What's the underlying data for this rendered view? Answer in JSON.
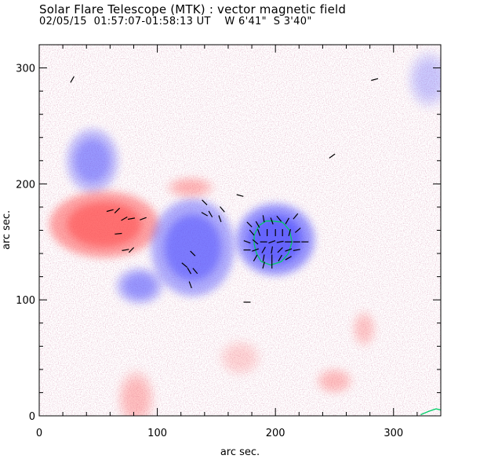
{
  "chart_data": {
    "type": "heatmap",
    "title": "Solar Flare Telescope (MTK) : vector magnetic field",
    "subtitle": "02/05/15  01:57:07-01:58:13 UT    W 6'41\"  S 3'40\"",
    "xlabel": "arc sec.",
    "ylabel": "arc sec.",
    "xlim": [
      0,
      340
    ],
    "ylim": [
      0,
      320
    ],
    "x_major_ticks": [
      0,
      100,
      200,
      300
    ],
    "y_major_ticks": [
      0,
      100,
      200,
      300
    ],
    "x_minor_step": 20,
    "y_minor_step": 20,
    "grid": false,
    "colors": {
      "positive_polarity": "#ff4040",
      "negative_polarity": "#4040ff",
      "vector": "#000000",
      "contour": "#00cc66",
      "background": "#ffffff"
    },
    "regions": [
      {
        "polarity": "negative",
        "x": 45,
        "y": 220,
        "rx": 20,
        "ry": 25,
        "strength": 0.55
      },
      {
        "polarity": "positive",
        "x": 55,
        "y": 165,
        "rx": 42,
        "ry": 26,
        "strength": 0.85
      },
      {
        "polarity": "negative",
        "x": 130,
        "y": 145,
        "rx": 32,
        "ry": 38,
        "strength": 0.75
      },
      {
        "polarity": "negative",
        "x": 200,
        "y": 152,
        "rx": 30,
        "ry": 28,
        "strength": 0.95
      },
      {
        "polarity": "negative",
        "x": 85,
        "y": 112,
        "rx": 18,
        "ry": 14,
        "strength": 0.55
      },
      {
        "polarity": "positive",
        "x": 128,
        "y": 197,
        "rx": 18,
        "ry": 8,
        "strength": 0.35
      },
      {
        "polarity": "positive",
        "x": 82,
        "y": 15,
        "rx": 14,
        "ry": 22,
        "strength": 0.3
      },
      {
        "polarity": "positive",
        "x": 250,
        "y": 30,
        "rx": 14,
        "ry": 10,
        "strength": 0.3
      },
      {
        "polarity": "positive",
        "x": 275,
        "y": 75,
        "rx": 9,
        "ry": 14,
        "strength": 0.25
      },
      {
        "polarity": "positive",
        "x": 170,
        "y": 50,
        "rx": 16,
        "ry": 14,
        "strength": 0.18
      },
      {
        "polarity": "negative",
        "x": 330,
        "y": 290,
        "rx": 16,
        "ry": 22,
        "strength": 0.25
      }
    ],
    "vectors": [
      {
        "x": 28,
        "y": 290,
        "angle": 60
      },
      {
        "x": 284,
        "y": 290,
        "angle": 15
      },
      {
        "x": 248,
        "y": 224,
        "angle": 35
      },
      {
        "x": 170,
        "y": 190,
        "angle": -15
      },
      {
        "x": 60,
        "y": 177,
        "angle": 15
      },
      {
        "x": 66,
        "y": 177,
        "angle": 45
      },
      {
        "x": 72,
        "y": 170,
        "angle": 30
      },
      {
        "x": 78,
        "y": 170,
        "angle": 10
      },
      {
        "x": 88,
        "y": 170,
        "angle": 20
      },
      {
        "x": 67,
        "y": 157,
        "angle": 5
      },
      {
        "x": 73,
        "y": 143,
        "angle": 10
      },
      {
        "x": 78,
        "y": 143,
        "angle": 45
      },
      {
        "x": 140,
        "y": 184,
        "angle": -45
      },
      {
        "x": 140,
        "y": 174,
        "angle": -30
      },
      {
        "x": 145,
        "y": 174,
        "angle": -60
      },
      {
        "x": 153,
        "y": 170,
        "angle": -70
      },
      {
        "x": 155,
        "y": 178,
        "angle": -50
      },
      {
        "x": 130,
        "y": 140,
        "angle": -45
      },
      {
        "x": 123,
        "y": 130,
        "angle": -40
      },
      {
        "x": 127,
        "y": 125,
        "angle": -60
      },
      {
        "x": 132,
        "y": 125,
        "angle": -50
      },
      {
        "x": 128,
        "y": 113,
        "angle": -70
      },
      {
        "x": 176,
        "y": 98,
        "angle": 0
      },
      {
        "x": 178,
        "y": 165,
        "angle": -45
      },
      {
        "x": 185,
        "y": 165,
        "angle": -60
      },
      {
        "x": 190,
        "y": 170,
        "angle": -80
      },
      {
        "x": 197,
        "y": 168,
        "angle": -70
      },
      {
        "x": 203,
        "y": 170,
        "angle": -50
      },
      {
        "x": 210,
        "y": 168,
        "angle": 60
      },
      {
        "x": 217,
        "y": 172,
        "angle": 50
      },
      {
        "x": 180,
        "y": 158,
        "angle": -50
      },
      {
        "x": 186,
        "y": 158,
        "angle": -70
      },
      {
        "x": 193,
        "y": 158,
        "angle": -90
      },
      {
        "x": 200,
        "y": 158,
        "angle": -90
      },
      {
        "x": 206,
        "y": 158,
        "angle": -90
      },
      {
        "x": 212,
        "y": 158,
        "angle": 75
      },
      {
        "x": 219,
        "y": 160,
        "angle": 40
      },
      {
        "x": 176,
        "y": 150,
        "angle": -20
      },
      {
        "x": 183,
        "y": 150,
        "angle": -40
      },
      {
        "x": 190,
        "y": 150,
        "angle": 0
      },
      {
        "x": 197,
        "y": 150,
        "angle": 20
      },
      {
        "x": 204,
        "y": 150,
        "angle": 10
      },
      {
        "x": 211,
        "y": 150,
        "angle": 0
      },
      {
        "x": 218,
        "y": 150,
        "angle": 0
      },
      {
        "x": 225,
        "y": 150,
        "angle": 0
      },
      {
        "x": 176,
        "y": 143,
        "angle": 0
      },
      {
        "x": 183,
        "y": 143,
        "angle": 20
      },
      {
        "x": 190,
        "y": 143,
        "angle": 60
      },
      {
        "x": 197,
        "y": 143,
        "angle": 80
      },
      {
        "x": 204,
        "y": 143,
        "angle": 45
      },
      {
        "x": 211,
        "y": 143,
        "angle": 20
      },
      {
        "x": 218,
        "y": 143,
        "angle": 10
      },
      {
        "x": 183,
        "y": 136,
        "angle": 60
      },
      {
        "x": 190,
        "y": 136,
        "angle": 80
      },
      {
        "x": 197,
        "y": 136,
        "angle": 90
      },
      {
        "x": 204,
        "y": 136,
        "angle": 60
      },
      {
        "x": 211,
        "y": 136,
        "angle": 30
      },
      {
        "x": 190,
        "y": 130,
        "angle": 75
      },
      {
        "x": 197,
        "y": 130,
        "angle": 90
      }
    ],
    "contours": [
      {
        "color": "#00cc66",
        "points": [
          [
            197,
            168
          ],
          [
            206,
            167
          ],
          [
            212,
            160
          ],
          [
            214,
            150
          ],
          [
            211,
            140
          ],
          [
            205,
            133
          ],
          [
            196,
            130
          ],
          [
            188,
            133
          ],
          [
            184,
            140
          ],
          [
            182,
            148
          ],
          [
            182,
            156
          ],
          [
            186,
            164
          ],
          [
            192,
            168
          ],
          [
            197,
            168
          ]
        ]
      },
      {
        "color": "#00cc66",
        "points": [
          [
            323,
            1
          ],
          [
            330,
            4
          ],
          [
            336,
            6
          ],
          [
            340,
            5
          ]
        ]
      }
    ]
  }
}
